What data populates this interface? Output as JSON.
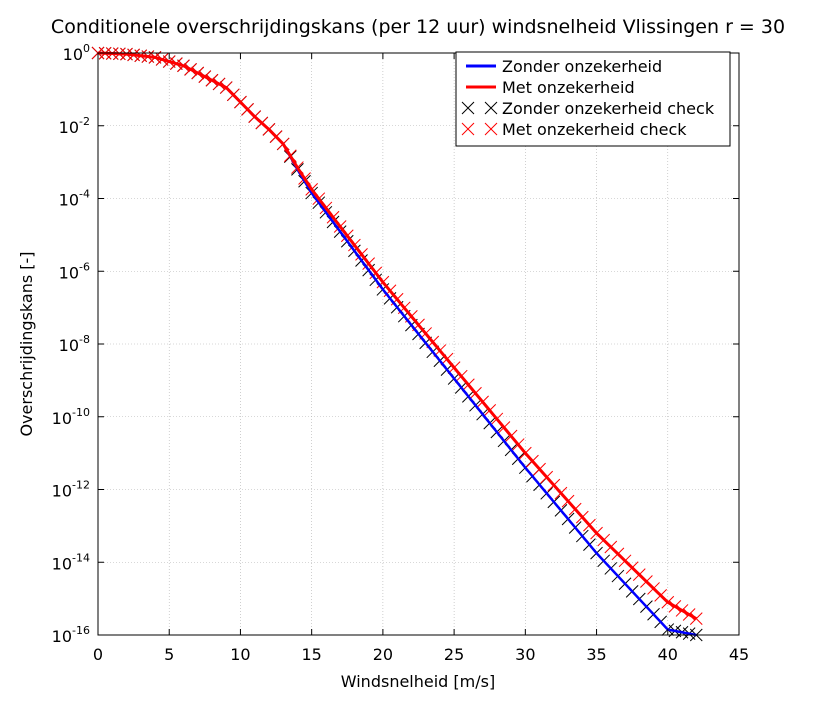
{
  "chart_data": {
    "type": "line",
    "title": "Conditionele overschrijdingskans (per 12 uur) windsnelheid Vlissingen r = 30",
    "xlabel": "Windsnelheid [m/s]",
    "ylabel": "Overschrijdingskans [-]",
    "xlim": [
      0,
      45
    ],
    "ylim_exponent": [
      -16,
      0
    ],
    "yscale": "log",
    "grid": true,
    "legend_position": "top-right",
    "x_ticks": [
      0,
      5,
      10,
      15,
      20,
      25,
      30,
      35,
      40,
      45
    ],
    "y_ticks": [
      {
        "base": "10",
        "exp": "0",
        "value": 0
      },
      {
        "base": "10",
        "exp": "-2",
        "value": -2
      },
      {
        "base": "10",
        "exp": "-4",
        "value": -4
      },
      {
        "base": "10",
        "exp": "-6",
        "value": -6
      },
      {
        "base": "10",
        "exp": "-8",
        "value": -8
      },
      {
        "base": "10",
        "exp": "-10",
        "value": -10
      },
      {
        "base": "10",
        "exp": "-12",
        "value": -12
      },
      {
        "base": "10",
        "exp": "-14",
        "value": -14
      },
      {
        "base": "10",
        "exp": "-16",
        "value": -16
      }
    ],
    "x": [
      0,
      2,
      4,
      6,
      9,
      10,
      11,
      12,
      13,
      14,
      15,
      20,
      25,
      30,
      35,
      40,
      42
    ],
    "series": [
      {
        "name": "Zonder onzekerheid",
        "kind": "line",
        "color": "#0000ff",
        "log10_values": [
          0,
          -0.03,
          -0.12,
          -0.35,
          -0.95,
          -1.35,
          -1.75,
          -2.1,
          -2.5,
          -3.2,
          -3.85,
          -6.5,
          -8.95,
          -11.4,
          -13.75,
          -15.85,
          -16.0
        ]
      },
      {
        "name": "Met onzekerheid",
        "kind": "line",
        "color": "#ff0000",
        "log10_values": [
          0,
          -0.03,
          -0.12,
          -0.35,
          -0.95,
          -1.35,
          -1.75,
          -2.1,
          -2.5,
          -3.15,
          -3.75,
          -6.3,
          -8.65,
          -11.0,
          -13.2,
          -15.1,
          -15.55
        ]
      },
      {
        "name": "Zonder onzekerheid check",
        "kind": "marker",
        "marker": "x",
        "color": "#000000",
        "x_range": [
          0,
          42
        ],
        "x_step": 0.5
      },
      {
        "name": "Met onzekerheid check",
        "kind": "marker",
        "marker": "x",
        "color": "#ff0000",
        "x_range": [
          0,
          42
        ],
        "x_step": 0.5
      }
    ]
  }
}
